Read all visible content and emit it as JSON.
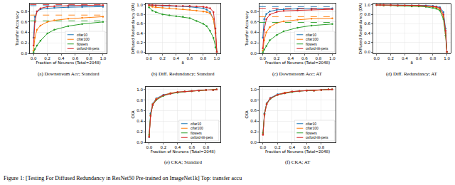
{
  "caption": "Figure 1: [Testing For Diffused Redundancy in ResNet50 Pre-trained on ImageNet1k] Top: transfer accu",
  "chart_data": [
    {
      "type": "line",
      "title": "(a) Downstream Acc; Standard",
      "x_label": "Fraction of Neurons (Total=2048)",
      "y_label": "Transfer Accuracy",
      "x": [
        0,
        0.02,
        0.05,
        0.1,
        0.2,
        0.3,
        0.5,
        0.7,
        1.0
      ],
      "series": [
        {
          "name": "cifar10",
          "color": "#1f77b4",
          "marker": "circle",
          "values": [
            0.3,
            0.7,
            0.8,
            0.84,
            0.86,
            0.87,
            0.88,
            0.885,
            0.89
          ]
        },
        {
          "name": "cifar100",
          "color": "#ff7f0e",
          "marker": "circle",
          "values": [
            0.05,
            0.3,
            0.45,
            0.53,
            0.6,
            0.63,
            0.66,
            0.68,
            0.7
          ]
        },
        {
          "name": "flowers",
          "color": "#2ca02c",
          "marker": "circle",
          "values": [
            0.02,
            0.08,
            0.15,
            0.24,
            0.38,
            0.45,
            0.52,
            0.56,
            0.6
          ]
        },
        {
          "name": "oxford-iiit-pets",
          "color": "#d62728",
          "marker": "circle",
          "values": [
            0.15,
            0.6,
            0.8,
            0.86,
            0.89,
            0.9,
            0.91,
            0.915,
            0.92
          ]
        }
      ],
      "reference_lines": [
        {
          "color": "#1f77b4",
          "value": 0.91,
          "line_style": "dashed"
        },
        {
          "color": "#ff7f0e",
          "value": 0.73,
          "line_style": "dashed"
        },
        {
          "color": "#2ca02c",
          "value": 0.62,
          "line_style": "dashed"
        },
        {
          "color": "#d62728",
          "value": 0.93,
          "line_style": "dashed"
        }
      ],
      "xlim": [
        -0.05,
        1.05
      ],
      "ylim": [
        0,
        0.95
      ],
      "xticks": [
        {
          "value": 0,
          "label": "0.0"
        },
        0.2,
        0.4,
        0.6,
        0.8,
        {
          "value": 1,
          "label": "1.0"
        }
      ],
      "yticks": [
        {
          "value": 0,
          "label": "0.0"
        },
        0.2,
        0.4,
        0.6,
        0.8
      ],
      "grid": true,
      "legend": "lower right"
    },
    {
      "type": "line",
      "title": "(b) Diff. Redundancy; Standard",
      "x_label": "δ",
      "y_label": "Diffused Redundancy (DR)",
      "x": [
        0,
        0.05,
        0.1,
        0.2,
        0.3,
        0.4,
        0.5,
        0.6,
        0.7,
        0.8,
        0.85,
        0.9,
        0.95,
        0.98,
        1.0
      ],
      "series": [
        {
          "name": "cifar10",
          "color": "#1f77b4",
          "marker": "circle",
          "values": [
            1,
            0.99,
            0.99,
            0.98,
            0.98,
            0.97,
            0.97,
            0.96,
            0.95,
            0.93,
            0.9,
            0.85,
            0.7,
            0.4,
            0
          ]
        },
        {
          "name": "cifar100",
          "color": "#ff7f0e",
          "marker": "circle",
          "values": [
            0.99,
            0.96,
            0.95,
            0.94,
            0.93,
            0.92,
            0.91,
            0.9,
            0.88,
            0.86,
            0.85,
            0.82,
            0.7,
            0.4,
            0
          ]
        },
        {
          "name": "flowers",
          "color": "#2ca02c",
          "marker": "circle",
          "values": [
            0.95,
            0.88,
            0.85,
            0.8,
            0.78,
            0.76,
            0.75,
            0.72,
            0.66,
            0.6,
            0.55,
            0.45,
            0.3,
            0.1,
            0
          ]
        },
        {
          "name": "oxford-iiit-pets",
          "color": "#d62728",
          "marker": "circle",
          "values": [
            1,
            1,
            0.99,
            0.99,
            0.99,
            0.98,
            0.98,
            0.98,
            0.97,
            0.96,
            0.95,
            0.93,
            0.85,
            0.5,
            0
          ]
        }
      ],
      "xlim": [
        -0.05,
        1.05
      ],
      "ylim": [
        -0.03,
        1.03
      ],
      "xticks": [
        {
          "value": 0,
          "label": "0.0"
        },
        0.2,
        0.4,
        0.6,
        0.8,
        {
          "value": 1,
          "label": "1.0"
        }
      ],
      "yticks": [
        {
          "value": 0,
          "label": "0.0"
        },
        0.2,
        0.4,
        0.6,
        0.8,
        {
          "value": 1,
          "label": "1.0"
        }
      ],
      "grid": true
    },
    {
      "type": "line",
      "title": "(c) Downstream Acc; AT",
      "x_label": "Fraction of Neurons (Total=2048)",
      "y_label": "Transfer Accuracy",
      "x": [
        0,
        0.02,
        0.05,
        0.1,
        0.2,
        0.3,
        0.5,
        0.7,
        1.0
      ],
      "series": [
        {
          "name": "cifar10",
          "color": "#1f77b4",
          "marker": "circle",
          "values": [
            0.3,
            0.65,
            0.75,
            0.8,
            0.83,
            0.84,
            0.85,
            0.855,
            0.86
          ]
        },
        {
          "name": "cifar100",
          "color": "#ff7f0e",
          "marker": "circle",
          "values": [
            0.05,
            0.25,
            0.4,
            0.5,
            0.58,
            0.61,
            0.64,
            0.66,
            0.67
          ]
        },
        {
          "name": "flowers",
          "color": "#2ca02c",
          "marker": "circle",
          "values": [
            0.02,
            0.07,
            0.14,
            0.25,
            0.35,
            0.42,
            0.49,
            0.53,
            0.56
          ]
        },
        {
          "name": "oxford-iiit-pets",
          "color": "#d62728",
          "marker": "circle",
          "values": [
            0.1,
            0.45,
            0.65,
            0.74,
            0.79,
            0.81,
            0.82,
            0.83,
            0.84
          ]
        }
      ],
      "reference_lines": [
        {
          "color": "#1f77b4",
          "value": 0.89,
          "line_style": "dashed"
        },
        {
          "color": "#ff7f0e",
          "value": 0.7,
          "line_style": "dashed"
        },
        {
          "color": "#2ca02c",
          "value": 0.59,
          "line_style": "dashed"
        },
        {
          "color": "#d62728",
          "value": 0.86,
          "line_style": "dashed"
        }
      ],
      "xlim": [
        -0.05,
        1.05
      ],
      "ylim": [
        0,
        0.95
      ],
      "xticks": [
        {
          "value": 0,
          "label": "0.0"
        },
        0.2,
        0.4,
        0.6,
        0.8,
        {
          "value": 1,
          "label": "1.0"
        }
      ],
      "yticks": [
        {
          "value": 0,
          "label": "0.0"
        },
        0.2,
        0.4,
        0.6,
        0.8
      ],
      "grid": true,
      "legend": "lower right"
    },
    {
      "type": "line",
      "title": "(d) Diff. Redundancy; AT",
      "x_label": "δ",
      "y_label": "Diffused Redundancy (DR)",
      "x": [
        0,
        0.05,
        0.1,
        0.2,
        0.3,
        0.4,
        0.5,
        0.6,
        0.7,
        0.8,
        0.85,
        0.9,
        0.95,
        0.98,
        1.0
      ],
      "series": [
        {
          "name": "cifar10",
          "color": "#1f77b4",
          "marker": "circle",
          "values": [
            1,
            1,
            1,
            1,
            1,
            0.99,
            0.99,
            0.99,
            0.99,
            0.98,
            0.97,
            0.95,
            0.85,
            0.5,
            0
          ]
        },
        {
          "name": "cifar100",
          "color": "#ff7f0e",
          "marker": "circle",
          "values": [
            1,
            1,
            0.99,
            0.99,
            0.99,
            0.99,
            0.98,
            0.98,
            0.97,
            0.96,
            0.94,
            0.9,
            0.75,
            0.4,
            0
          ]
        },
        {
          "name": "flowers",
          "color": "#2ca02c",
          "marker": "circle",
          "values": [
            1,
            1,
            0.99,
            0.99,
            0.98,
            0.98,
            0.97,
            0.97,
            0.96,
            0.94,
            0.92,
            0.88,
            0.7,
            0.35,
            0
          ]
        },
        {
          "name": "oxford-iiit-pets",
          "color": "#d62728",
          "marker": "circle",
          "values": [
            1,
            1,
            1,
            1,
            0.99,
            0.99,
            0.99,
            0.99,
            0.98,
            0.97,
            0.96,
            0.93,
            0.8,
            0.45,
            0
          ]
        }
      ],
      "xlim": [
        -0.05,
        1.05
      ],
      "ylim": [
        -0.03,
        1.03
      ],
      "xticks": [
        {
          "value": 0,
          "label": "0.0"
        },
        0.2,
        0.4,
        0.6,
        0.8,
        {
          "value": 1,
          "label": "1.0"
        }
      ],
      "yticks": [
        {
          "value": 0,
          "label": "0.0"
        },
        0.2,
        0.4,
        0.6,
        0.8,
        {
          "value": 1,
          "label": "1.0"
        }
      ],
      "grid": true
    },
    {
      "type": "line",
      "title": "(e) CKA; Standard",
      "x_label": "Fraction of Neurons (Total=2048)",
      "y_label": "CKA",
      "x": [
        0,
        0.02,
        0.05,
        0.1,
        0.2,
        0.3,
        0.4,
        0.5,
        0.6,
        0.7,
        0.8,
        0.9,
        0.95
      ],
      "series": [
        {
          "name": "cifar10",
          "color": "#1f77b4",
          "marker": "circle",
          "values": [
            0.1,
            0.55,
            0.73,
            0.83,
            0.9,
            0.93,
            0.95,
            0.96,
            0.97,
            0.98,
            0.99,
            0.99,
            1.0
          ]
        },
        {
          "name": "cifar100",
          "color": "#ff7f0e",
          "marker": "circle",
          "values": [
            0.12,
            0.5,
            0.72,
            0.82,
            0.89,
            0.93,
            0.95,
            0.96,
            0.97,
            0.98,
            0.99,
            0.99,
            1.0
          ]
        },
        {
          "name": "flowers",
          "color": "#2ca02c",
          "marker": "circle",
          "values": [
            0.14,
            0.52,
            0.7,
            0.8,
            0.88,
            0.92,
            0.94,
            0.96,
            0.97,
            0.98,
            0.99,
            0.99,
            1.0
          ]
        },
        {
          "name": "oxford-iiit-pets",
          "color": "#d62728",
          "marker": "circle",
          "values": [
            0.1,
            0.5,
            0.71,
            0.81,
            0.89,
            0.92,
            0.95,
            0.96,
            0.97,
            0.98,
            0.99,
            0.99,
            1.0
          ]
        }
      ],
      "xlim": [
        -0.05,
        1.0
      ],
      "ylim": [
        0,
        1.05
      ],
      "xticks": [
        {
          "value": 0,
          "label": "0.0"
        },
        0.2,
        0.4,
        0.6,
        0.8
      ],
      "yticks": [
        {
          "value": 0,
          "label": "0.0"
        },
        0.2,
        0.4,
        0.6,
        0.8,
        {
          "value": 1,
          "label": "1.0"
        }
      ],
      "grid": true,
      "legend": "lower right"
    },
    {
      "type": "line",
      "title": "(f) CKA; AT",
      "x_label": "Fraction of Neurons (Total=2048)",
      "y_label": "CKA",
      "x": [
        0,
        0.02,
        0.05,
        0.1,
        0.2,
        0.3,
        0.4,
        0.5,
        0.6,
        0.7,
        0.8,
        0.9,
        0.95
      ],
      "series": [
        {
          "name": "cifar10",
          "color": "#1f77b4",
          "marker": "circle",
          "values": [
            0.15,
            0.55,
            0.74,
            0.84,
            0.91,
            0.94,
            0.96,
            0.97,
            0.98,
            0.98,
            0.99,
            1.0,
            1.0
          ]
        },
        {
          "name": "cifar100",
          "color": "#ff7f0e",
          "marker": "circle",
          "values": [
            0.16,
            0.53,
            0.73,
            0.83,
            0.9,
            0.94,
            0.96,
            0.97,
            0.98,
            0.98,
            0.99,
            1.0,
            1.0
          ]
        },
        {
          "name": "flowers",
          "color": "#2ca02c",
          "marker": "circle",
          "values": [
            0.18,
            0.54,
            0.72,
            0.82,
            0.9,
            0.93,
            0.95,
            0.97,
            0.98,
            0.98,
            0.99,
            1.0,
            1.0
          ]
        },
        {
          "name": "oxford-iiit-pets",
          "color": "#d62728",
          "marker": "circle",
          "values": [
            0.14,
            0.52,
            0.72,
            0.83,
            0.9,
            0.93,
            0.96,
            0.97,
            0.98,
            0.98,
            0.99,
            1.0,
            1.0
          ]
        }
      ],
      "xlim": [
        -0.05,
        1.0
      ],
      "ylim": [
        0,
        1.05
      ],
      "xticks": [
        {
          "value": 0,
          "label": "0.0"
        },
        0.2,
        0.4,
        0.6,
        0.8
      ],
      "yticks": [
        {
          "value": 0,
          "label": "0.0"
        },
        0.2,
        0.4,
        0.6,
        0.8,
        {
          "value": 1,
          "label": "1.0"
        }
      ],
      "grid": true,
      "legend": "lower right"
    }
  ]
}
